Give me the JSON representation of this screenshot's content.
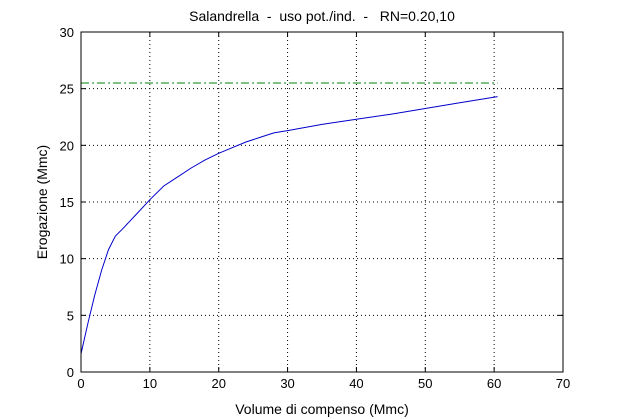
{
  "chart_data": {
    "type": "line",
    "title": "Salandrella  -  uso pot./ind.  -   RN=0.20,10",
    "xlabel": "Volume di compenso (Mmc)",
    "ylabel": "Erogazione (Mmc)",
    "xlim": [
      0,
      70
    ],
    "ylim": [
      0,
      30
    ],
    "xticks": [
      0,
      10,
      20,
      30,
      40,
      50,
      60,
      70
    ],
    "yticks": [
      0,
      5,
      10,
      15,
      20,
      25,
      30
    ],
    "grid": true,
    "series": [
      {
        "style": "solid",
        "color": "#0000cc",
        "x": [
          0,
          1,
          2,
          3,
          4,
          5,
          6,
          8,
          10,
          12,
          14,
          16,
          18,
          20,
          22,
          24,
          26,
          28,
          30,
          35,
          40,
          45,
          50,
          55,
          60.5
        ],
        "y": [
          1.6,
          4.3,
          6.8,
          9.0,
          10.8,
          12.0,
          12.6,
          13.9,
          15.2,
          16.4,
          17.2,
          18.0,
          18.7,
          19.3,
          19.8,
          20.3,
          20.7,
          21.1,
          21.3,
          21.85,
          22.3,
          22.75,
          23.25,
          23.75,
          24.3
        ]
      },
      {
        "style": "dash-dot",
        "color": "#008000",
        "x": [
          0,
          60.5
        ],
        "y": [
          25.5,
          25.5
        ]
      }
    ]
  }
}
